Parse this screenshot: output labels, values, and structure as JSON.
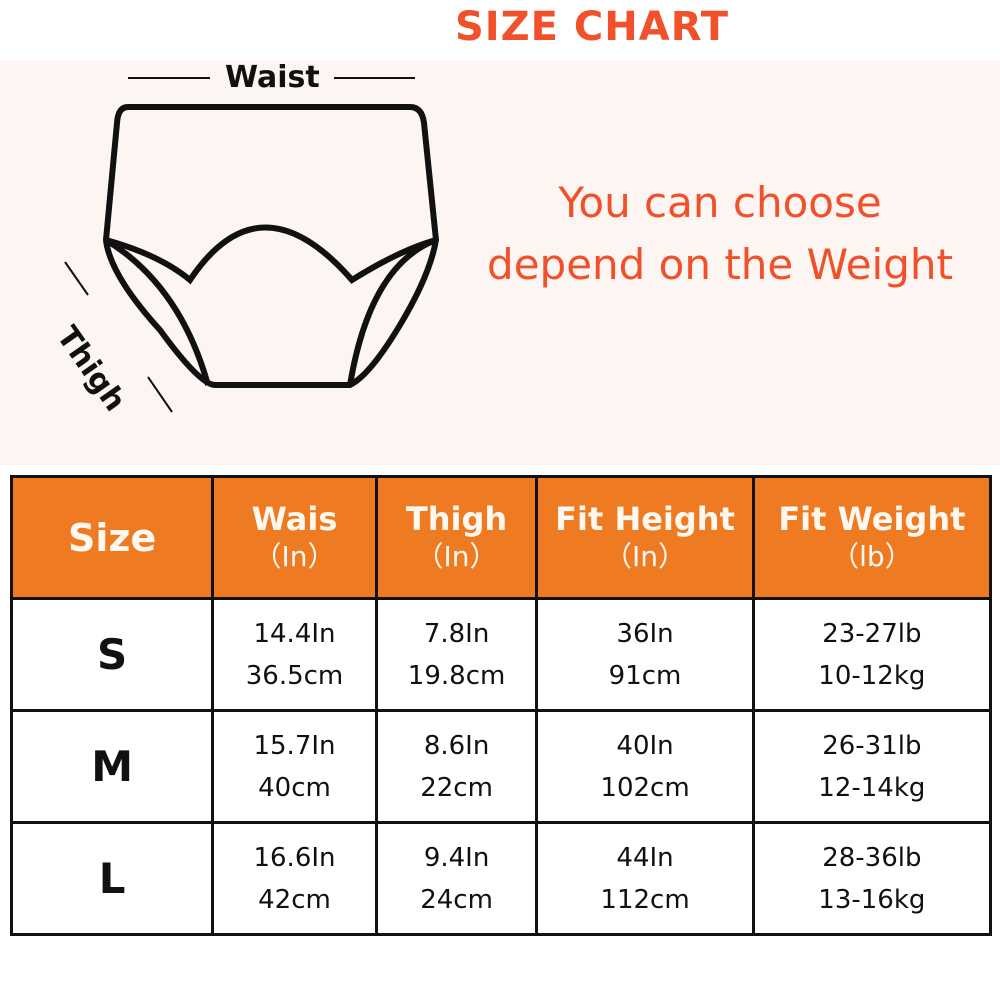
{
  "title": "SIZE CHART",
  "note": [
    "You can choose",
    "depend on the Weight"
  ],
  "diagram": {
    "waist_label": "Waist",
    "thigh_label": "Thigh"
  },
  "colors": {
    "header": "#ee7a22",
    "accent_text": "#f0502a"
  },
  "table": {
    "headers": [
      {
        "label": "Size",
        "unit": ""
      },
      {
        "label": "Wais",
        "unit": "（In）"
      },
      {
        "label": "Thigh",
        "unit": "（In）"
      },
      {
        "label": "Fit Height",
        "unit": "（In）"
      },
      {
        "label": "Fit Weight",
        "unit": "（lb）"
      }
    ],
    "rows": [
      {
        "size": "S",
        "waist": [
          "14.4In",
          "36.5cm"
        ],
        "thigh": [
          "7.8In",
          "19.8cm"
        ],
        "height": [
          "36In",
          "91cm"
        ],
        "weight": [
          "23-27lb",
          "10-12kg"
        ]
      },
      {
        "size": "M",
        "waist": [
          "15.7In",
          "40cm"
        ],
        "thigh": [
          "8.6In",
          "22cm"
        ],
        "height": [
          "40In",
          "102cm"
        ],
        "weight": [
          "26-31lb",
          "12-14kg"
        ]
      },
      {
        "size": "L",
        "waist": [
          "16.6In",
          "42cm"
        ],
        "thigh": [
          "9.4In",
          "24cm"
        ],
        "height": [
          "44In",
          "112cm"
        ],
        "weight": [
          "28-36lb",
          "13-16kg"
        ]
      }
    ]
  }
}
